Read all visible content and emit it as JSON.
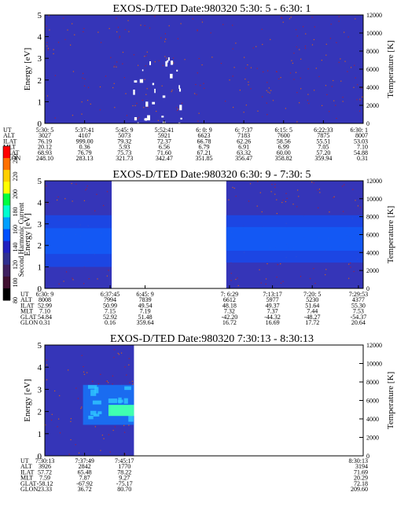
{
  "colorbar": {
    "label": "Second Harmonic Current",
    "ticks": [
      "240",
      "220",
      "200",
      "180",
      "160",
      "140",
      "120",
      "100",
      "80"
    ],
    "colors": [
      "#ff0000",
      "#ff7000",
      "#ffd000",
      "#ffff00",
      "#00ff40",
      "#00ffd0",
      "#00a0ff",
      "#0050ff",
      "#2020c0",
      "#303090",
      "#402060",
      "#401030",
      "#000000"
    ]
  },
  "chart_data": [
    {
      "type": "heatmap",
      "title": "EXOS-D/TED   Date:980320  5:30: 5 - 6:30: 1",
      "ylabel": "Energy [eV]",
      "y2label": "Temperature [K]",
      "ylim": [
        0,
        5
      ],
      "y2lim": [
        0,
        12000
      ],
      "yticks": [
        "0",
        "1",
        "2",
        "3",
        "4",
        "5"
      ],
      "y2ticks": [
        "0",
        "2000",
        "4000",
        "6000",
        "8000",
        "10000",
        "12000"
      ],
      "data_coverage": [
        [
          0.0,
          1.0
        ]
      ],
      "features": [
        {
          "kind": "white_specks",
          "x_range": [
            0.27,
            0.44
          ],
          "y_range": [
            0.0,
            3.4
          ]
        }
      ],
      "table": {
        "rows": [
          "UT",
          "ALT",
          "ILAT",
          "MLT",
          "GLAT",
          "GLON"
        ],
        "columns": [
          [
            "5:30: 5",
            "3027",
            "76.19",
            "20.12",
            "68.93",
            "248.10"
          ],
          [
            "5:37:41",
            "4107",
            "999.00",
            "0.36",
            "76.79",
            "283.13"
          ],
          [
            "5:45: 9",
            "5073",
            "79.32",
            "5.93",
            "75.73",
            "321.73"
          ],
          [
            "5:52:41",
            "5921",
            "72.37",
            "6.56",
            "71.60",
            "342.47"
          ],
          [
            "6: 0: 9",
            "6623",
            "66.78",
            "6.79",
            "67.21",
            "351.85"
          ],
          [
            "6: 7:37",
            "7183",
            "62.26",
            "6.91",
            "63.32",
            "356.47"
          ],
          [
            "6:15: 5",
            "7600",
            "58.56",
            "6.99",
            "60.00",
            "358.82"
          ],
          [
            "6:22:33",
            "7875",
            "55.51",
            "7.05",
            "57.20",
            "359.94"
          ],
          [
            "6:30: 1",
            "8007",
            "53.03",
            "7.10",
            "54.88",
            "0.31"
          ]
        ]
      }
    },
    {
      "type": "heatmap",
      "title": "EXOS-D/TED   Date:980320  6:30: 9 - 7:30: 5",
      "ylabel": "Energy [eV]",
      "y2label": "Temperature [K]",
      "ylim": [
        0,
        5
      ],
      "y2lim": [
        0,
        12000
      ],
      "yticks": [
        "0",
        "1",
        "2",
        "3",
        "4",
        "5"
      ],
      "y2ticks": [
        "0",
        "2000",
        "4000",
        "6000",
        "8000",
        "10000",
        "12000"
      ],
      "data_coverage": [
        [
          0.0,
          0.21
        ],
        [
          0.57,
          1.0
        ]
      ],
      "features": [
        {
          "kind": "blue_band",
          "x_range": [
            0.0,
            0.21
          ],
          "y_range": [
            1.0,
            3.4
          ]
        },
        {
          "kind": "blue_band",
          "x_range": [
            0.57,
            1.0
          ],
          "y_range": [
            1.2,
            3.4
          ]
        }
      ],
      "table": {
        "rows": [
          "UT",
          "ALT",
          "ILAT",
          "MLT",
          "GLAT",
          "GLON"
        ],
        "columns": [
          [
            "6:30: 9",
            "8008",
            "52.99",
            "7.10",
            "54.84",
            "0.31"
          ],
          [
            "6:37:45",
            "7994",
            "50.99",
            "7.15",
            "52.92",
            "0.16"
          ],
          [
            "6:45: 9",
            "7839",
            "49.54",
            "7.19",
            "51.48",
            "359.64"
          ],
          [
            "7: 6:29",
            "6612",
            "48.18",
            "7.32",
            "-42.20",
            "16.72"
          ],
          [
            "7:13:17",
            "5977",
            "49.37",
            "7.37",
            "-44.32",
            "16.69"
          ],
          [
            "7:20: 5",
            "5230",
            "51.64",
            "7.44",
            "-48.27",
            "17.72"
          ],
          [
            "7:29:53",
            "4377",
            "55.30",
            "7.53",
            "-54.37",
            "20.64"
          ]
        ]
      }
    },
    {
      "type": "heatmap",
      "title": "EXOS-D/TED   Date:980320  7:30:13 - 8:30:13",
      "ylabel": "Energy [eV]",
      "y2label": "Temperature [K]",
      "ylim": [
        0,
        5
      ],
      "y2lim": [
        0,
        12000
      ],
      "yticks": [
        "0",
        "1",
        "2",
        "3",
        "4",
        "5"
      ],
      "y2ticks": [
        "0",
        "2000",
        "4000",
        "6000",
        "8000",
        "10000",
        "12000"
      ],
      "data_coverage": [
        [
          0.0,
          0.28
        ]
      ],
      "features": [
        {
          "kind": "cyan_band",
          "x_range": [
            0.12,
            0.28
          ],
          "y_range": [
            1.4,
            3.2
          ]
        },
        {
          "kind": "bright_band",
          "x_range": [
            0.2,
            0.28
          ],
          "y_range": [
            1.8,
            2.3
          ]
        }
      ],
      "table": {
        "rows": [
          "UT",
          "ALT",
          "ILAT",
          "MLT",
          "GLAT",
          "GLON"
        ],
        "columns": [
          [
            "7:30:13",
            "3926",
            "57.72",
            "7.59",
            "-58.12",
            "23.33"
          ],
          [
            "7:37:49",
            "2842",
            "65.48",
            "7.87",
            "-67.92",
            "36.72"
          ],
          [
            "7:45:17",
            "1770",
            "78.22",
            "9.27",
            "-75.17",
            "80.70"
          ],
          [
            "8:30:13",
            "3194",
            "71.69",
            "20.29",
            "72.18",
            "209.60"
          ]
        ]
      }
    }
  ]
}
